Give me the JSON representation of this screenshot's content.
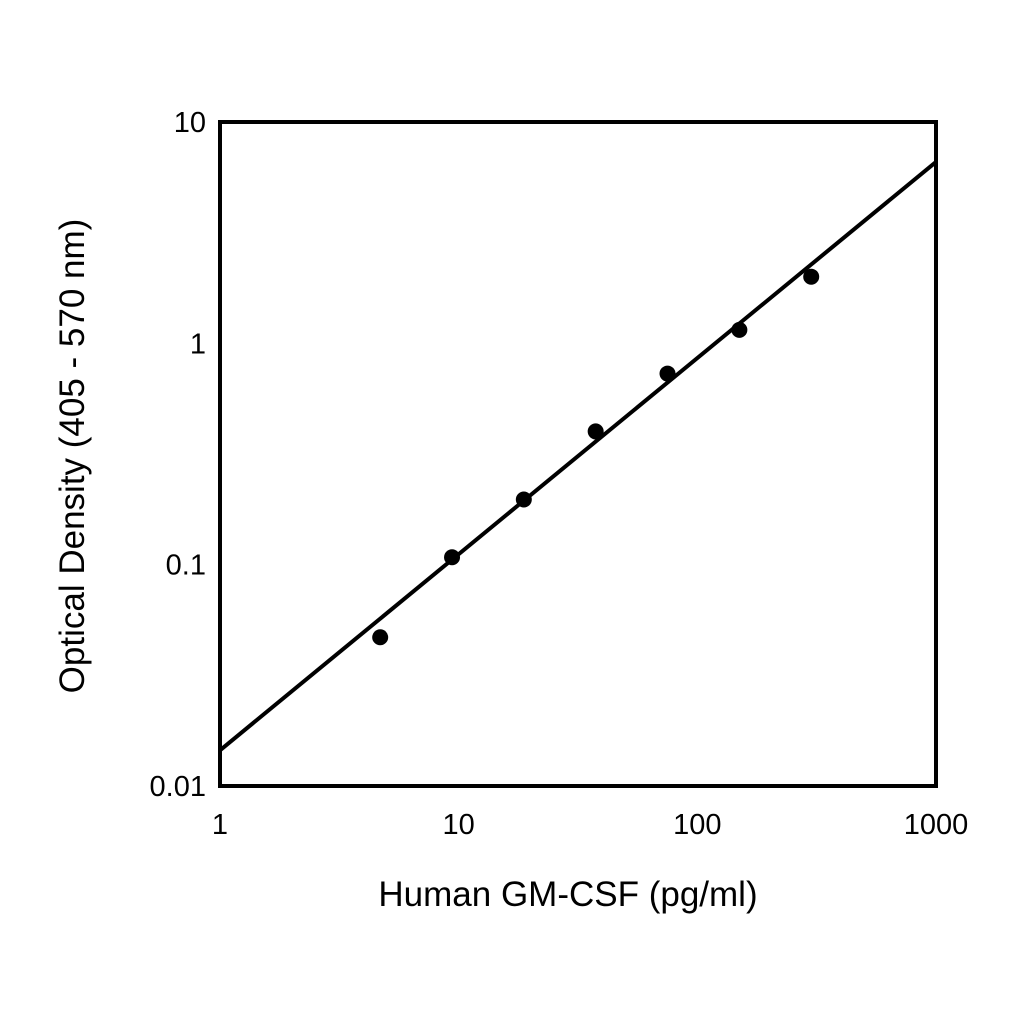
{
  "chart_data": {
    "type": "scatter",
    "title": "",
    "xlabel": "Human GM-CSF (pg/ml)",
    "ylabel": "Optical Density (405 - 570 nm)",
    "xscale": "log",
    "yscale": "log",
    "xlim": [
      1,
      1000
    ],
    "ylim": [
      0.01,
      10
    ],
    "grid": false,
    "legend": "none",
    "x_ticks": [
      1,
      10,
      100,
      1000
    ],
    "x_tick_labels": [
      "1",
      "10",
      "100",
      "1000"
    ],
    "y_ticks": [
      0.01,
      0.1,
      1,
      10
    ],
    "y_tick_labels": [
      "0.01",
      "0.1",
      "1",
      "10"
    ],
    "series": [
      {
        "type": "scatter",
        "x": [
          4.69,
          9.38,
          18.75,
          37.5,
          75,
          150,
          300
        ],
        "y": [
          0.047,
          0.108,
          0.197,
          0.4,
          0.73,
          1.15,
          2.0
        ]
      },
      {
        "type": "line",
        "x": [
          1,
          1000
        ],
        "y": [
          0.0145,
          6.6
        ]
      }
    ],
    "colors": {
      "marker": "#000000",
      "line": "#000000",
      "frame": "#000000"
    }
  }
}
